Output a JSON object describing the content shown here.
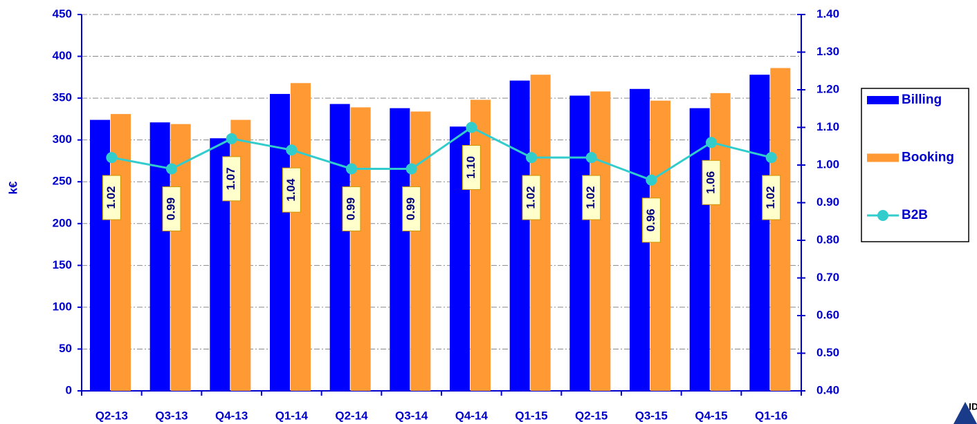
{
  "chart_data": {
    "type": "bar_line",
    "y_label": "k€",
    "categories": [
      "Q2-13",
      "Q3-13",
      "Q4-13",
      "Q1-14",
      "Q2-14",
      "Q3-14",
      "Q4-14",
      "Q1-15",
      "Q2-15",
      "Q3-15",
      "Q4-15",
      "Q1-16"
    ],
    "series": [
      {
        "name": "Billing",
        "color": "#0000ff",
        "type": "bar",
        "values": [
          324,
          321,
          302,
          355,
          343,
          338,
          316,
          371,
          353,
          361,
          338,
          378
        ]
      },
      {
        "name": "Booking",
        "color": "#ff9933",
        "type": "bar",
        "values": [
          331,
          319,
          324,
          368,
          339,
          334,
          348,
          378,
          358,
          347,
          356,
          386
        ]
      },
      {
        "name": "B2B",
        "color": "#33cccc",
        "type": "line",
        "axis": "y2",
        "values": [
          1.02,
          0.99,
          1.07,
          1.04,
          0.99,
          0.99,
          1.1,
          1.02,
          1.02,
          0.96,
          1.06,
          1.02
        ],
        "value_labels": [
          "1.02",
          "0.99",
          "1.07",
          "1.04",
          "0.99",
          "0.99",
          "1.10",
          "1.02",
          "1.02",
          "0.96",
          "1.06",
          "1.02"
        ]
      }
    ],
    "ylim": [
      0,
      450
    ],
    "yticks": [
      0,
      50,
      100,
      150,
      200,
      250,
      300,
      350,
      400,
      450
    ],
    "y2lim": [
      0.4,
      1.4
    ],
    "y2ticks": [
      {
        "value": 0.4,
        "label": "0.40"
      },
      {
        "value": 0.5,
        "label": "0.50"
      },
      {
        "value": 0.6,
        "label": "0.60"
      },
      {
        "value": 0.7,
        "label": "0.70"
      },
      {
        "value": 0.8,
        "label": "0.80"
      },
      {
        "value": 0.9,
        "label": "0.90"
      },
      {
        "value": 1.0,
        "label": "1.00"
      },
      {
        "value": 1.1,
        "label": "1.10"
      },
      {
        "value": 1.2,
        "label": "1.20"
      },
      {
        "value": 1.3,
        "label": "1.30"
      },
      {
        "value": 1.4,
        "label": "1.40"
      }
    ],
    "grid": true,
    "legend": "right",
    "logo_text": "IDEA"
  }
}
